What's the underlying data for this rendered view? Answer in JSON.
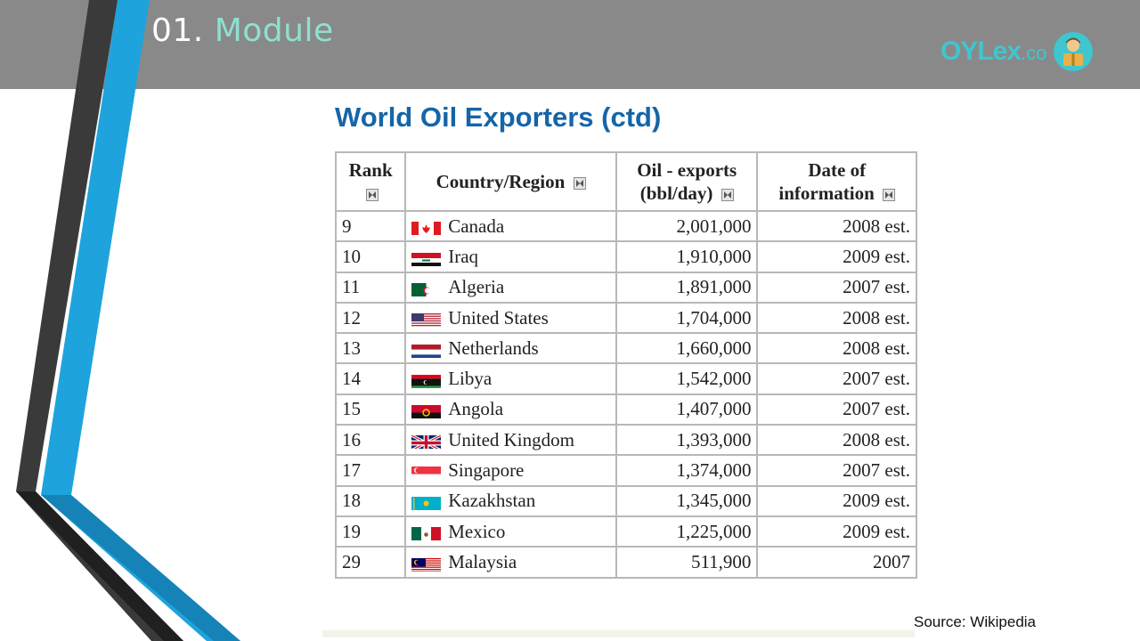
{
  "header": {
    "module_number": "01.",
    "module_label": "Module",
    "logo_text": "OYLex",
    "logo_suffix": ".co"
  },
  "slide": {
    "title": "World Oil Exporters (ctd)",
    "source": "Source: Wikipedia"
  },
  "table": {
    "headers": {
      "rank": "Rank",
      "country": "Country/Region",
      "exports_line1": "Oil - exports",
      "exports_line2": "(bbl/day)",
      "date_line1": "Date of",
      "date_line2": "information"
    },
    "rows": [
      {
        "rank": "9",
        "country": "Canada",
        "flag": "canada-flag",
        "exports": "2,001,000",
        "date": "2008 est."
      },
      {
        "rank": "10",
        "country": "Iraq",
        "flag": "iraq-flag",
        "exports": "1,910,000",
        "date": "2009 est."
      },
      {
        "rank": "11",
        "country": "Algeria",
        "flag": "algeria-flag",
        "exports": "1,891,000",
        "date": "2007 est."
      },
      {
        "rank": "12",
        "country": "United States",
        "flag": "united-states-flag",
        "exports": "1,704,000",
        "date": "2008 est."
      },
      {
        "rank": "13",
        "country": "Netherlands",
        "flag": "netherlands-flag",
        "exports": "1,660,000",
        "date": "2008 est."
      },
      {
        "rank": "14",
        "country": "Libya",
        "flag": "libya-flag",
        "exports": "1,542,000",
        "date": "2007 est."
      },
      {
        "rank": "15",
        "country": "Angola",
        "flag": "angola-flag",
        "exports": "1,407,000",
        "date": "2007 est."
      },
      {
        "rank": "16",
        "country": "United Kingdom",
        "flag": "united-kingdom-flag",
        "exports": "1,393,000",
        "date": "2008 est."
      },
      {
        "rank": "17",
        "country": "Singapore",
        "flag": "singapore-flag",
        "exports": "1,374,000",
        "date": "2007 est."
      },
      {
        "rank": "18",
        "country": "Kazakhstan",
        "flag": "kazakhstan-flag",
        "exports": "1,345,000",
        "date": "2009 est."
      },
      {
        "rank": "19",
        "country": "Mexico",
        "flag": "mexico-flag",
        "exports": "1,225,000",
        "date": "2009 est."
      },
      {
        "rank": "29",
        "country": "Malaysia",
        "flag": "malaysia-flag",
        "exports": "511,900",
        "date": "2007"
      }
    ]
  },
  "colors": {
    "title_blue": "#1565a8",
    "header_gray": "#898989",
    "module_teal": "#8fe0d0",
    "logo_teal": "#3fc6cf",
    "stripe_blue": "#1ea3dd",
    "stripe_dark": "#2a2a2a"
  }
}
